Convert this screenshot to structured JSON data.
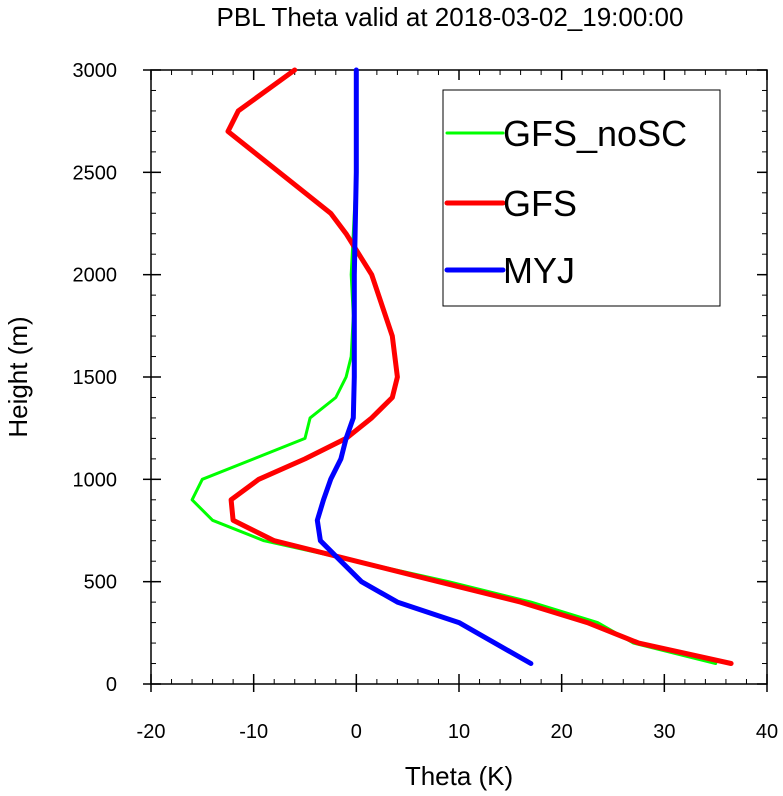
{
  "chart_data": {
    "type": "line",
    "title": "PBL Theta valid at 2018-03-02_19:00:00",
    "xlabel": "Theta (K)",
    "ylabel": "Height (m)",
    "xlim": [
      -20,
      40
    ],
    "ylim": [
      0,
      3000
    ],
    "xticks": [
      -20,
      -10,
      0,
      10,
      20,
      30,
      40
    ],
    "yticks": [
      0,
      500,
      1000,
      1500,
      2000,
      2500,
      3000
    ],
    "legend_position": "top-right",
    "series": [
      {
        "name": "GFS_noSC",
        "color": "#00ff00",
        "points": [
          [
            35.0,
            100
          ],
          [
            27.0,
            200
          ],
          [
            23.5,
            300
          ],
          [
            17.0,
            400
          ],
          [
            9.0,
            500
          ],
          [
            0.0,
            600
          ],
          [
            -9.0,
            700
          ],
          [
            -14.0,
            800
          ],
          [
            -16.0,
            900
          ],
          [
            -15.0,
            1000
          ],
          [
            -10.0,
            1100
          ],
          [
            -5.0,
            1200
          ],
          [
            -4.5,
            1300
          ],
          [
            -2.0,
            1400
          ],
          [
            -1.0,
            1500
          ],
          [
            -0.5,
            1600
          ],
          [
            -0.3,
            1800
          ],
          [
            -0.5,
            2000
          ],
          [
            -0.3,
            2200
          ],
          [
            0.0,
            2500
          ],
          [
            0.0,
            3000
          ]
        ]
      },
      {
        "name": "GFS",
        "color": "#ff0000",
        "points": [
          [
            36.5,
            100
          ],
          [
            27.5,
            200
          ],
          [
            22.5,
            300
          ],
          [
            16.0,
            400
          ],
          [
            8.0,
            500
          ],
          [
            0.0,
            600
          ],
          [
            -8.0,
            700
          ],
          [
            -12.0,
            800
          ],
          [
            -12.2,
            900
          ],
          [
            -9.5,
            1000
          ],
          [
            -5.0,
            1100
          ],
          [
            -1.0,
            1200
          ],
          [
            1.5,
            1300
          ],
          [
            3.5,
            1400
          ],
          [
            4.0,
            1500
          ],
          [
            3.5,
            1700
          ],
          [
            1.5,
            2000
          ],
          [
            -1.0,
            2200
          ],
          [
            -2.5,
            2300
          ],
          [
            -5.0,
            2400
          ],
          [
            -10.0,
            2600
          ],
          [
            -12.5,
            2700
          ],
          [
            -11.5,
            2800
          ],
          [
            -6.0,
            3000
          ]
        ]
      },
      {
        "name": "MYJ",
        "color": "#0000ff",
        "points": [
          [
            17.0,
            100
          ],
          [
            13.5,
            200
          ],
          [
            10.0,
            300
          ],
          [
            4.0,
            400
          ],
          [
            0.5,
            500
          ],
          [
            -1.5,
            600
          ],
          [
            -3.5,
            700
          ],
          [
            -3.8,
            800
          ],
          [
            -3.2,
            900
          ],
          [
            -2.5,
            1000
          ],
          [
            -1.5,
            1100
          ],
          [
            -1.0,
            1200
          ],
          [
            -0.3,
            1300
          ],
          [
            -0.2,
            1500
          ],
          [
            -0.2,
            2000
          ],
          [
            0.0,
            2500
          ],
          [
            0.0,
            3000
          ]
        ]
      }
    ]
  }
}
